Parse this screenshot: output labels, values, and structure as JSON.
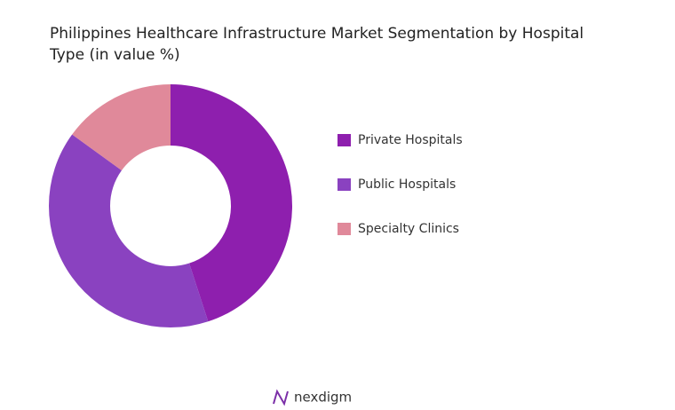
{
  "chart_data": {
    "type": "donut",
    "title": "Philippines Healthcare Infrastructure Market Segmentation by Hospital Type (in value %)",
    "categories": [
      "Private Hospitals",
      "Public Hospitals",
      "Specialty Clinics"
    ],
    "values": [
      45,
      40,
      15
    ],
    "colors": [
      "#8e1fae",
      "#8a42c0",
      "#e0899a"
    ],
    "legend": "right"
  },
  "brand": "nexdigm"
}
